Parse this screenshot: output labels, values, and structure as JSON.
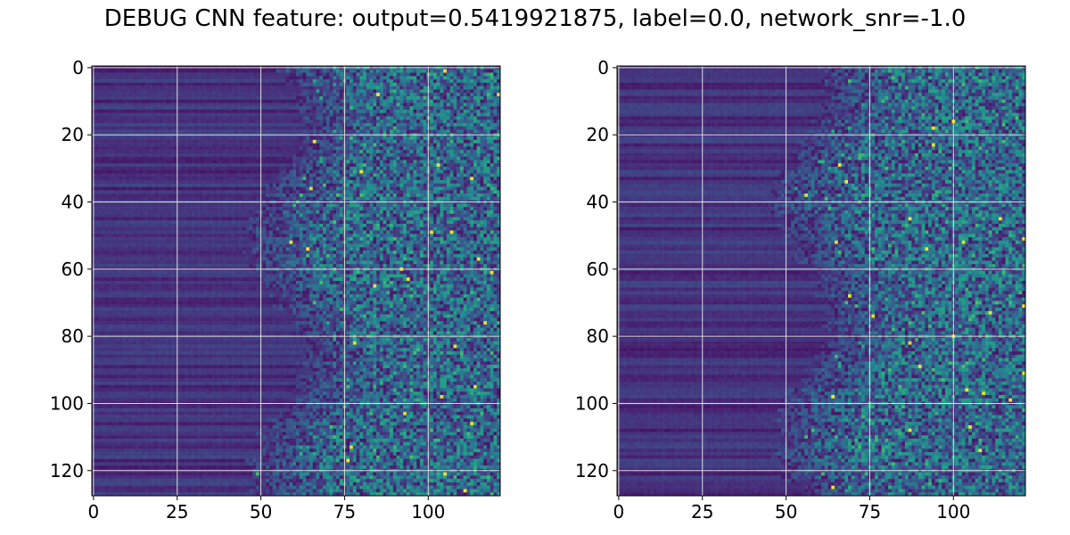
{
  "title": "DEBUG CNN feature: output=0.5419921875, label=0.0, network_snr=-1.0",
  "colormap": "viridis",
  "palette": {
    "viridis": [
      "#440154",
      "#472c7a",
      "#3b518b",
      "#2c718e",
      "#21908d",
      "#27ad81",
      "#5cc863",
      "#aadc32",
      "#fde725"
    ],
    "grid": "#dcdcdc"
  },
  "chart_data": [
    {
      "type": "heatmap",
      "title": "",
      "xlabel": "",
      "ylabel": "",
      "rows": 128,
      "cols": 122,
      "xlim": [
        -0.5,
        121.5
      ],
      "ylim": [
        127.5,
        -0.5
      ],
      "xticks": [
        0,
        25,
        50,
        75,
        100
      ],
      "yticks": [
        0,
        20,
        40,
        60,
        80,
        100,
        120
      ],
      "grid": true,
      "pattern": "low uniform intensity in columns 0-55 with faint horizontal banding; noisy higher intensities in columns 55-121 with sparse bright yellow pixels"
    },
    {
      "type": "heatmap",
      "title": "",
      "xlabel": "",
      "ylabel": "",
      "rows": 128,
      "cols": 122,
      "xlim": [
        -0.5,
        121.5
      ],
      "ylim": [
        127.5,
        -0.5
      ],
      "xticks": [
        0,
        25,
        50,
        75,
        100
      ],
      "yticks": [
        0,
        20,
        40,
        60,
        80,
        100,
        120
      ],
      "grid": true,
      "pattern": "low uniform intensity in columns 0-55 with faint horizontal banding; noisy higher intensities in columns 55-121 with sparse bright yellow pixels"
    }
  ]
}
